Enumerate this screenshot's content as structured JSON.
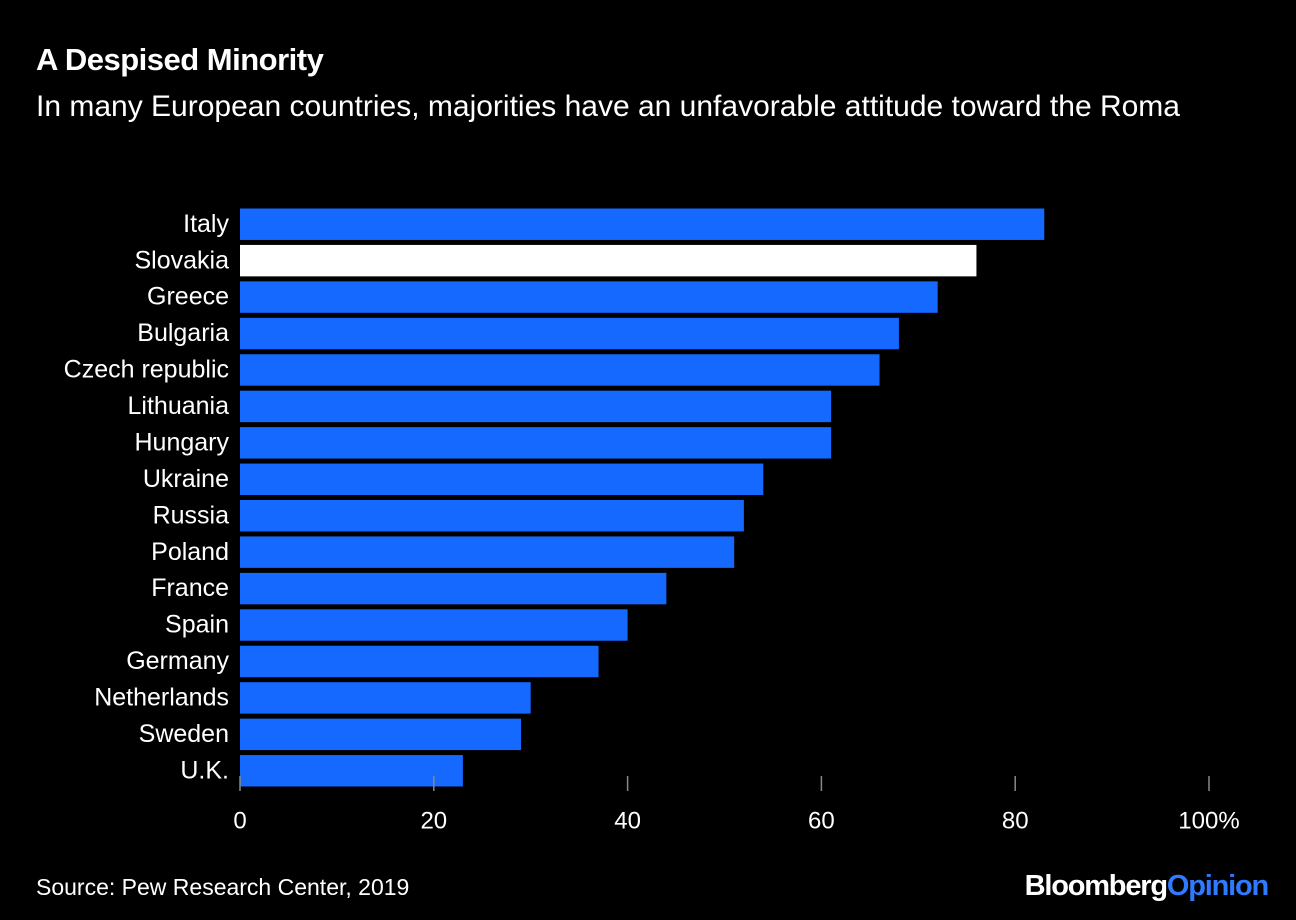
{
  "chart_data": {
    "type": "bar",
    "orientation": "horizontal",
    "title": "A Despised Minority",
    "subtitle": "In many European countries, majorities have an unfavorable attitude toward the Roma",
    "categories": [
      "Italy",
      "Slovakia",
      "Greece",
      "Bulgaria",
      "Czech republic",
      "Lithuania",
      "Hungary",
      "Ukraine",
      "Russia",
      "Poland",
      "France",
      "Spain",
      "Germany",
      "Netherlands",
      "Sweden",
      "U.K."
    ],
    "values": [
      83,
      76,
      72,
      68,
      66,
      61,
      61,
      54,
      52,
      51,
      44,
      40,
      37,
      30,
      29,
      23
    ],
    "colors": [
      "#1569ff",
      "#ffffff",
      "#1569ff",
      "#1569ff",
      "#1569ff",
      "#1569ff",
      "#1569ff",
      "#1569ff",
      "#1569ff",
      "#1569ff",
      "#1569ff",
      "#1569ff",
      "#1569ff",
      "#1569ff",
      "#1569ff",
      "#1569ff"
    ],
    "xlim": [
      0,
      100
    ],
    "xticks": [
      0,
      20,
      40,
      60,
      80,
      {
        "value": 100,
        "label": "100%"
      }
    ],
    "source": "Source: Pew Research Center, 2019",
    "brand": [
      "Bloomberg",
      "Opinion"
    ]
  }
}
